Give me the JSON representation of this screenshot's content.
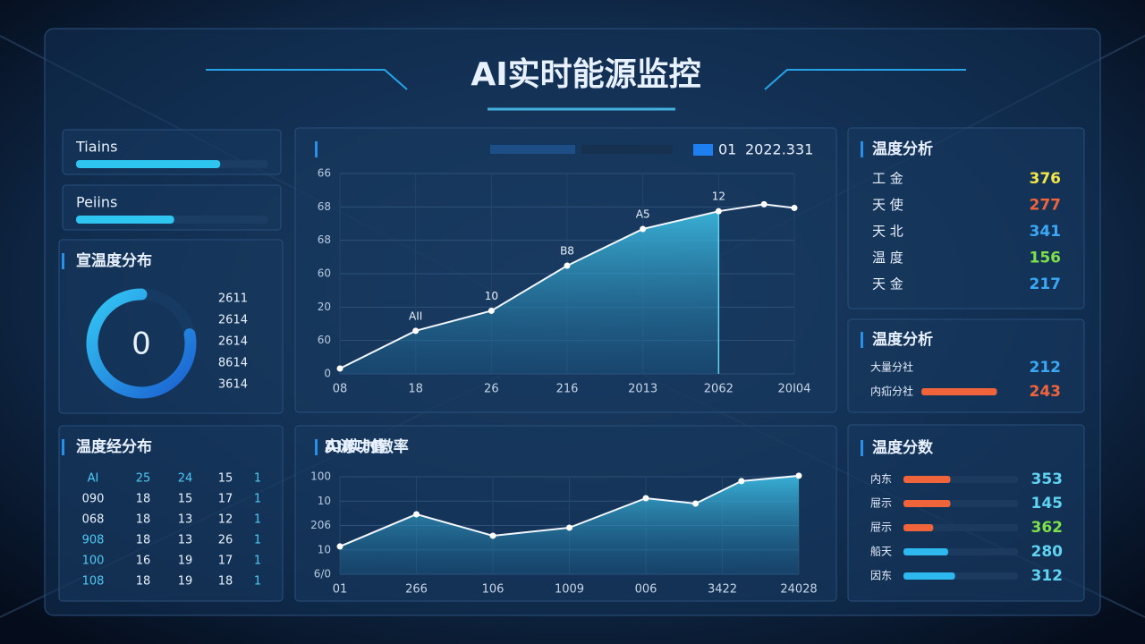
{
  "header": {
    "title": "AI实时能源监控"
  },
  "progress": [
    {
      "label": "Tiains",
      "value": 75
    },
    {
      "label": "Peiins",
      "value": 51
    }
  ],
  "gauge": {
    "title": "宣温度分布",
    "value": "0",
    "arc": 78,
    "legend": [
      "2611",
      "2614",
      "2614",
      "8614",
      "3614"
    ]
  },
  "table": {
    "title": "温度经分布",
    "rows": [
      [
        "AI",
        "25",
        "24",
        "15",
        "1"
      ],
      [
        "090",
        "18",
        "15",
        "17",
        "1"
      ],
      [
        "068",
        "18",
        "13",
        "12",
        "1"
      ],
      [
        "908",
        "18",
        "13",
        "26",
        "1"
      ],
      [
        "100",
        "16",
        "19",
        "17",
        "1"
      ],
      [
        "108",
        "18",
        "19",
        "18",
        "1"
      ]
    ]
  },
  "chart1": {
    "title": "AII实时傲率",
    "legend": [
      "01",
      "2022.331"
    ],
    "ylabels": [
      "66",
      "68",
      "68",
      "60",
      "20",
      "60",
      "0"
    ],
    "xlabels": [
      "08",
      "18",
      "26",
      "216",
      "2013",
      "2062",
      "20I04"
    ],
    "ylim": [
      0,
      6
    ],
    "xlim": [
      0,
      6
    ],
    "x": [
      0,
      1,
      2,
      3,
      4,
      5,
      5.6,
      6
    ],
    "values": [
      0.16,
      1.29,
      1.89,
      3.24,
      4.34,
      4.87,
      5.08,
      4.97
    ],
    "point_labels": [
      null,
      "AII",
      "10",
      "B8",
      "A5",
      "12",
      null,
      null
    ]
  },
  "chart2": {
    "title": "实漾功值",
    "ylabels": [
      "100",
      "10",
      "206",
      "10",
      "6/0"
    ],
    "xlabels": [
      "01",
      "266",
      "106",
      "1009",
      "006",
      "3422",
      "24028"
    ],
    "ylim": [
      0,
      4
    ],
    "xlim": [
      0,
      6
    ],
    "x": [
      0,
      1,
      2,
      3,
      4,
      4.65,
      5.25,
      6
    ],
    "values": [
      1.14,
      2.46,
      1.58,
      1.91,
      3.12,
      2.9,
      3.82,
      4.04
    ]
  },
  "panel1": {
    "title": "温度分析",
    "rows": [
      {
        "label": "工 金",
        "value": "376",
        "color": "#f2e64a"
      },
      {
        "label": "天 使",
        "value": "277",
        "color": "#f0643c"
      },
      {
        "label": "天 北",
        "value": "341",
        "color": "#3aa8f5"
      },
      {
        "label": "温 度",
        "value": "156",
        "color": "#7ee04a"
      },
      {
        "label": "天 金",
        "value": "217",
        "color": "#3aa8f5"
      }
    ]
  },
  "panel2": {
    "title": "温度分析",
    "rows": [
      {
        "label": "大量分社",
        "value": "212",
        "color": "#3aa8f5"
      },
      {
        "label": "内疝分社",
        "value": "243",
        "color": "#f0643c",
        "bar": 65
      }
    ]
  },
  "panel3": {
    "title": "温度分数",
    "rows": [
      {
        "label": "内东",
        "value": "353",
        "color": "#5fd3f0",
        "bar": 41,
        "bar_color": "#f0643c"
      },
      {
        "label": "屉示",
        "value": "145",
        "color": "#5fd3f0",
        "bar": 41,
        "bar_color": "#f0643c"
      },
      {
        "label": "屉示",
        "value": "362",
        "color": "#7ee04a",
        "bar": 26,
        "bar_color": "#f0643c"
      },
      {
        "label": "船天",
        "value": "280",
        "color": "#5fd3f0",
        "bar": 39,
        "bar_color": "#2eb8f0"
      },
      {
        "label": "因东",
        "value": "312",
        "color": "#5fd3f0",
        "bar": 45,
        "bar_color": "#2eb8f0"
      }
    ]
  }
}
